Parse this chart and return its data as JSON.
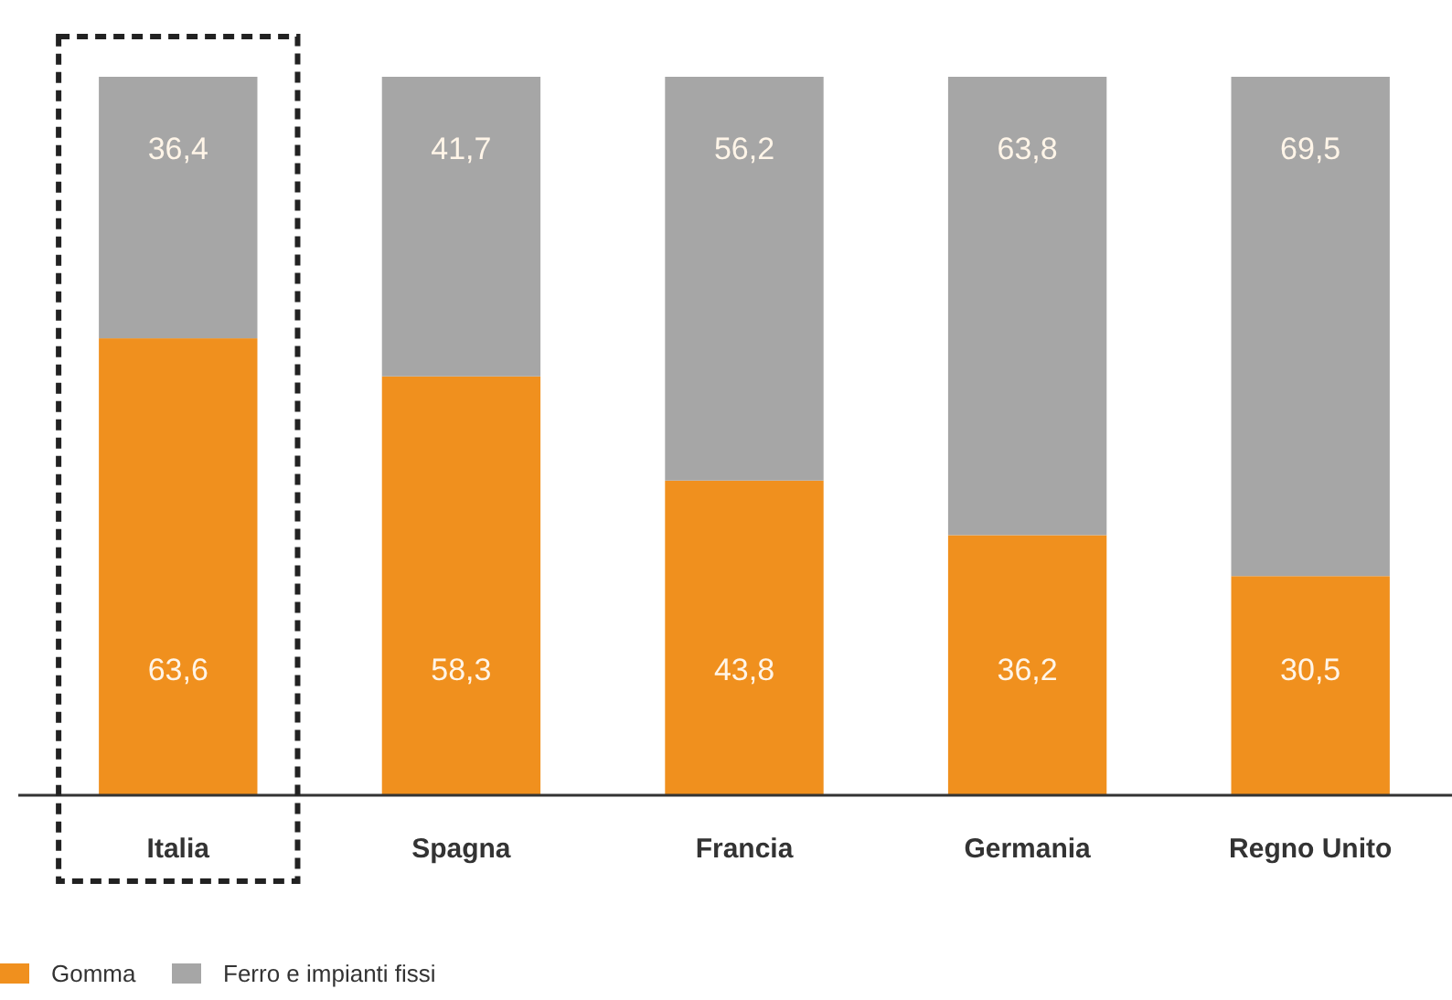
{
  "chart_data": {
    "type": "bar",
    "stacked": true,
    "categories": [
      "Italia",
      "Spagna",
      "Francia",
      "Germania",
      "Regno Unito"
    ],
    "series": [
      {
        "name": "Gomma",
        "color": "#f0901e",
        "values": [
          63.6,
          58.3,
          43.8,
          36.2,
          30.5
        ],
        "value_labels": [
          "63,6",
          "58,3",
          "43,8",
          "36,2",
          "30,5"
        ]
      },
      {
        "name": "Ferro e impianti fissi",
        "color": "#a6a6a6",
        "values": [
          36.4,
          41.7,
          56.2,
          63.8,
          69.5
        ],
        "value_labels": [
          "36,4",
          "41,7",
          "56,2",
          "63,8",
          "69,5"
        ]
      }
    ],
    "legend": "bottom left"
  }
}
